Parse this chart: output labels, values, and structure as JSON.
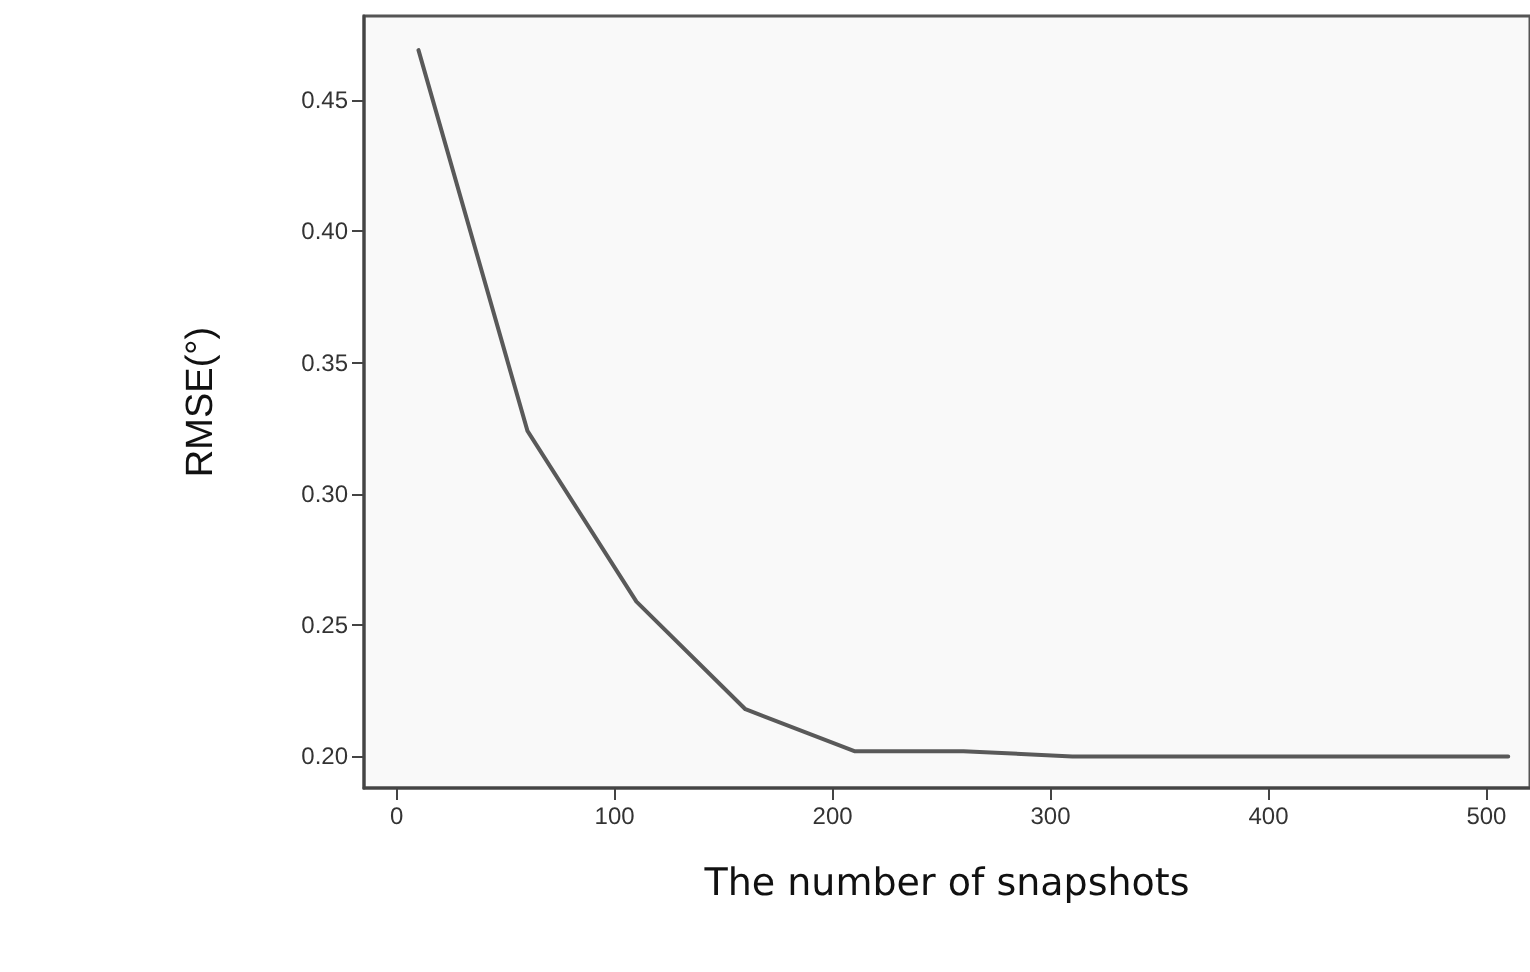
{
  "chart_data": {
    "type": "line",
    "xlabel": "The number of snapshots",
    "ylabel": "RMSE(°)",
    "x": [
      10,
      60,
      110,
      160,
      210,
      260,
      310,
      360,
      410,
      460,
      510
    ],
    "series": [
      {
        "color": "#595959",
        "values": [
          0.469,
          0.324,
          0.259,
          0.218,
          0.202,
          0.202,
          0.2,
          0.2,
          0.2,
          0.2,
          0.2
        ]
      }
    ],
    "xlim": [
      -15,
      520
    ],
    "xticks": [
      0,
      100,
      200,
      300,
      400,
      500
    ],
    "ylim": [
      0.188,
      0.482
    ],
    "yticks": [
      {
        "value": 0.2,
        "label": "0.20"
      },
      0.25,
      {
        "value": 0.3,
        "label": "0.30"
      },
      0.35,
      {
        "value": 0.4,
        "label": "0.40"
      },
      0.45
    ],
    "grid": false,
    "marker": "none",
    "line_style": "solid"
  }
}
